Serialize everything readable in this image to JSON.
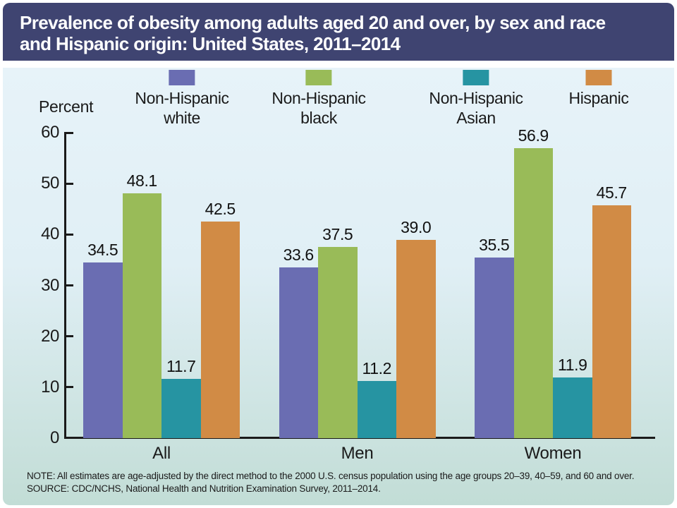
{
  "header": {
    "title_line1": "Prevalence of obesity among adults aged 20 and over, by sex and race",
    "title_line2": "and Hispanic origin: United States, 2011–2014",
    "bar_color": "#3f4471"
  },
  "legend": {
    "items": [
      {
        "line1": "Non-Hispanic",
        "line2": "white",
        "color": "#6a6db2"
      },
      {
        "line1": "Non-Hispanic",
        "line2": "black",
        "color": "#99bb58"
      },
      {
        "line1": "Non-Hispanic",
        "line2": "Asian",
        "color": "#2694a2"
      },
      {
        "line1": "Hispanic",
        "line2": "",
        "color": "#d18b45"
      }
    ]
  },
  "axis": {
    "ylabel": "Percent",
    "ytick_labels": [
      "60",
      "50",
      "40",
      "30",
      "20",
      "10",
      "0"
    ]
  },
  "chart_data": {
    "type": "bar",
    "title": "Prevalence of obesity among adults aged 20 and over, by sex and race and Hispanic origin: United States, 2011–2014",
    "xlabel": "",
    "ylabel": "Percent",
    "ylim": [
      0,
      60
    ],
    "ytick_interval": 10,
    "grid": false,
    "legend_position": "top",
    "categories": [
      "All",
      "Men",
      "Women"
    ],
    "series": [
      {
        "name": "Non-Hispanic white",
        "color": "#6a6db2",
        "values": [
          34.5,
          33.6,
          35.5
        ],
        "labels": [
          "34.5",
          "33.6",
          "35.5"
        ]
      },
      {
        "name": "Non-Hispanic black",
        "color": "#99bb58",
        "values": [
          48.1,
          37.5,
          56.9
        ],
        "labels": [
          "48.1",
          "37.5",
          "56.9"
        ]
      },
      {
        "name": "Non-Hispanic Asian",
        "color": "#2694a2",
        "values": [
          11.7,
          11.2,
          11.9
        ],
        "labels": [
          "11.7",
          "11.2",
          "11.9"
        ]
      },
      {
        "name": "Hispanic",
        "color": "#d18b45",
        "values": [
          42.5,
          39.0,
          45.7
        ],
        "labels": [
          "42.5",
          "39.0",
          "45.7"
        ]
      }
    ]
  },
  "notes": {
    "note": "NOTE: All estimates are age-adjusted by the direct method to the 2000 U.S. census population using the age groups 20–39, 40–59, and 60 and over.",
    "source": "SOURCE: CDC/NCHS, National Health and Nutrition Examination Survey, 2011–2014."
  }
}
